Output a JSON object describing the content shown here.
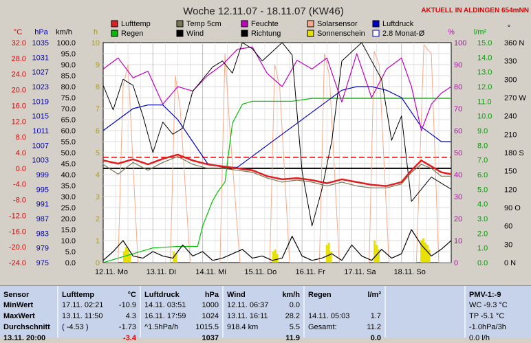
{
  "header": {
    "title": "Woche 12.11.07 - 18.11.07 (KW46)",
    "aktuell": "AKTUELL IN ALDINGEN 654mNN"
  },
  "axis_units": {
    "temp": "°C",
    "hpa": "hPa",
    "kmh": "km/h",
    "h": "h",
    "pct": "%",
    "lm2": "l/m²",
    "deg": "°"
  },
  "axis_ticks": {
    "temp": [
      "32.0",
      "28.0",
      "24.0",
      "20.0",
      "16.0",
      "12.0",
      "8.0",
      "4.0",
      "0.0",
      "-4.0",
      "-8.0",
      "-12.0",
      "-16.0",
      "-20.0",
      "-24.0"
    ],
    "hpa": [
      "1035",
      "1031",
      "1027",
      "1023",
      "1019",
      "1015",
      "1011",
      "1007",
      "1003",
      "999",
      "995",
      "991",
      "987",
      "983",
      "979",
      "975"
    ],
    "kmh": [
      "100.0",
      "95.0",
      "90.0",
      "85.0",
      "80.0",
      "75.0",
      "70.0",
      "65.0",
      "60.0",
      "55.0",
      "50.0",
      "45.0",
      "40.0",
      "35.0",
      "30.0",
      "25.0",
      "20.0",
      "15.0",
      "10.0",
      "5.0",
      "0.0"
    ],
    "h": [
      "10",
      "9",
      "8",
      "7",
      "6",
      "5",
      "4",
      "3",
      "2",
      "1",
      "0"
    ],
    "pct": [
      "100",
      "90",
      "80",
      "70",
      "60",
      "50",
      "40",
      "30",
      "20",
      "10",
      "0"
    ],
    "lm2": [
      "15.0",
      "14.0",
      "13.0",
      "12.0",
      "11.0",
      "10.0",
      "9.0",
      "8.0",
      "7.0",
      "6.0",
      "5.0",
      "4.0",
      "3.0",
      "2.0",
      "1.0",
      "0.0"
    ],
    "deg": [
      "360 N",
      "330",
      "300",
      "270 W",
      "240",
      "210",
      "180 S",
      "150",
      "120",
      "90 O",
      "60",
      "30",
      "0 N"
    ],
    "days": [
      "12.11. Mo",
      "13.11. Di",
      "14.11. Mi",
      "15.11. Do",
      "16.11. Fr",
      "17.11. Sa",
      "18.11. So"
    ]
  },
  "legend": [
    {
      "label": "Lufttemp",
      "color": "#e02020",
      "type": "box"
    },
    {
      "label": "Temp 5cm",
      "color": "#787858",
      "type": "box"
    },
    {
      "label": "Feuchte",
      "color": "#c000c0",
      "type": "box"
    },
    {
      "label": "Solarsensor",
      "color": "#f8a888",
      "type": "box"
    },
    {
      "label": "Luftdruck",
      "color": "#0000c8",
      "type": "box"
    },
    {
      "label": "Regen",
      "color": "#00c000",
      "type": "box"
    },
    {
      "label": "Wind",
      "color": "#000000",
      "type": "box"
    },
    {
      "label": "Richtung",
      "color": "#000000",
      "type": "box"
    },
    {
      "label": "Sonnenschein",
      "color": "#e8e000",
      "type": "box"
    },
    {
      "label": "2.8 Monat-Ø",
      "color": "#0000c8",
      "type": "outline"
    }
  ],
  "chart_data": {
    "type": "line",
    "title": "Woche 12.11.07 - 18.11.07 (KW46)",
    "x_unit": "days since 12.11. 00:00",
    "xlim": [
      0,
      7
    ],
    "ylim_temp": [
      -24,
      32
    ],
    "ylim_pressure": [
      975,
      1035
    ],
    "ylim_wind": [
      0,
      100
    ],
    "ylim_sunshine": [
      0,
      10
    ],
    "ylim_humidity": [
      0,
      100
    ],
    "ylim_rain": [
      0,
      15
    ],
    "ylim_direction": [
      0,
      360
    ],
    "grid": true,
    "reference_lines": [
      {
        "name": "2.8 Monat-Ø",
        "axis": "temp",
        "value": 2.8,
        "style": "dashed",
        "color": "#e00000"
      },
      {
        "name": "0°C",
        "axis": "temp",
        "value": 0,
        "style": "solid",
        "color": "#000000"
      }
    ],
    "series": [
      {
        "name": "Lufttemp",
        "axis": "temp",
        "color": "#e02020",
        "x": [
          0,
          0.3,
          0.6,
          0.9,
          1.2,
          1.5,
          1.8,
          2.1,
          2.4,
          2.7,
          3.0,
          3.3,
          3.6,
          3.9,
          4.2,
          4.5,
          4.8,
          5.1,
          5.4,
          5.7,
          6.0,
          6.2,
          6.4,
          6.6,
          6.8,
          7.0
        ],
        "y": [
          2.0,
          1.2,
          2.3,
          1.0,
          2.4,
          3.5,
          2.0,
          1.0,
          0.5,
          0.0,
          -0.5,
          -2.0,
          -2.8,
          -2.5,
          -3.0,
          -3.8,
          -2.8,
          -3.5,
          -4.2,
          -4.5,
          -3.5,
          -0.5,
          2.0,
          0.5,
          -1.0,
          -1.5
        ]
      },
      {
        "name": "Temp 5cm",
        "axis": "temp",
        "color": "#787858",
        "x": [
          0,
          0.3,
          0.6,
          0.9,
          1.2,
          1.5,
          1.8,
          2.1,
          2.4,
          2.7,
          3.0,
          3.3,
          3.6,
          3.9,
          4.2,
          4.5,
          4.8,
          5.1,
          5.4,
          5.7,
          6.0,
          6.2,
          6.4,
          6.6,
          6.8,
          7.0
        ],
        "y": [
          1.0,
          -1.5,
          1.5,
          -0.5,
          1.5,
          3.0,
          1.0,
          0.0,
          0.0,
          -0.5,
          -1.0,
          -2.5,
          -3.5,
          -3.0,
          -3.5,
          -4.5,
          -3.5,
          -4.5,
          -5.0,
          -5.0,
          -4.0,
          -1.0,
          1.0,
          0.0,
          -2.0,
          -2.0
        ]
      },
      {
        "name": "Feuchte",
        "axis": "humidity",
        "color": "#c000c0",
        "x": [
          0,
          0.3,
          0.6,
          0.9,
          1.2,
          1.5,
          1.8,
          2.1,
          2.4,
          2.7,
          3.0,
          3.3,
          3.6,
          3.9,
          4.2,
          4.5,
          4.8,
          5.1,
          5.4,
          5.7,
          6.0,
          6.2,
          6.4,
          6.6,
          6.8,
          7.0
        ],
        "y": [
          88,
          93,
          84,
          87,
          72,
          80,
          78,
          85,
          90,
          97,
          98,
          86,
          80,
          92,
          88,
          93,
          73,
          95,
          75,
          88,
          93,
          80,
          60,
          72,
          77,
          80
        ]
      },
      {
        "name": "Solarsensor",
        "axis": "humidity",
        "color": "#f8a888",
        "x": [
          0,
          0.3,
          0.4,
          0.5,
          0.7,
          1.0,
          1.35,
          1.45,
          1.55,
          1.75,
          2.0,
          2.35,
          2.45,
          2.55,
          2.75,
          3.0,
          3.35,
          3.45,
          3.55,
          3.75,
          4.0,
          4.35,
          4.45,
          4.55,
          4.75,
          5.0,
          5.35,
          5.45,
          5.55,
          5.75,
          6.0,
          6.3,
          6.45,
          6.6,
          6.75,
          7.0
        ],
        "y": [
          0,
          0,
          80,
          90,
          0,
          0,
          0,
          85,
          70,
          0,
          0,
          0,
          95,
          60,
          0,
          0,
          0,
          90,
          80,
          0,
          0,
          0,
          95,
          85,
          0,
          0,
          0,
          96,
          90,
          0,
          0,
          0,
          99,
          95,
          0,
          0
        ]
      },
      {
        "name": "Luftdruck",
        "axis": "pressure",
        "color": "#0000c8",
        "x": [
          0,
          0.3,
          0.6,
          0.9,
          1.2,
          1.5,
          1.8,
          2.1,
          2.4,
          2.7,
          3.0,
          3.3,
          3.6,
          3.9,
          4.2,
          4.5,
          4.8,
          5.1,
          5.4,
          5.7,
          6.0,
          6.2,
          6.4,
          6.6,
          6.8,
          7.0
        ],
        "y": [
          1011,
          1014,
          1017,
          1018,
          1018,
          1014,
          1008,
          1002,
          1001,
          1001,
          1004,
          1007,
          1010,
          1013,
          1016,
          1019,
          1022,
          1023,
          1023,
          1022,
          1020,
          1016,
          1012,
          1010,
          1008,
          1008
        ]
      },
      {
        "name": "Regen",
        "axis": "rain",
        "color": "#00c000",
        "x": [
          0,
          0.5,
          1.0,
          1.5,
          1.9,
          2.0,
          2.2,
          2.3,
          2.45,
          2.6,
          2.8,
          3.0,
          3.8,
          4.2,
          5.0,
          6.0,
          7.0
        ],
        "y": [
          0,
          0.5,
          1.0,
          1.1,
          1.1,
          2.5,
          4.2,
          4.8,
          5.5,
          9.5,
          10.8,
          11.0,
          11.0,
          11.2,
          11.2,
          11.2,
          11.2
        ]
      },
      {
        "name": "Wind",
        "axis": "wind",
        "color": "#000000",
        "x": [
          0,
          0.2,
          0.4,
          0.6,
          0.8,
          1.0,
          1.2,
          1.4,
          1.6,
          1.8,
          2.0,
          2.2,
          2.4,
          2.6,
          2.8,
          3.0,
          3.2,
          3.4,
          3.6,
          3.8,
          4.0,
          4.2,
          4.4,
          4.6,
          4.8,
          5.0,
          5.2,
          5.4,
          5.6,
          5.8,
          6.0,
          6.2,
          6.4,
          6.6,
          6.8,
          7.0
        ],
        "y": [
          1,
          5,
          10,
          3,
          2,
          5,
          3,
          2,
          8,
          3,
          5,
          1,
          2,
          4,
          6,
          2,
          3,
          1,
          2,
          12,
          3,
          1,
          2,
          4,
          1,
          8,
          3,
          1,
          6,
          2,
          4,
          15,
          8,
          3,
          6,
          10
        ]
      },
      {
        "name": "Richtung",
        "axis": "direction",
        "color": "#000000",
        "x": [
          0,
          0.2,
          0.4,
          0.6,
          0.8,
          1.0,
          1.2,
          1.4,
          1.6,
          1.8,
          2.0,
          2.2,
          2.4,
          2.6,
          2.8,
          3.0,
          3.2,
          3.4,
          3.6,
          3.8,
          4.0,
          4.2,
          4.4,
          4.6,
          4.8,
          5.0,
          5.2,
          5.4,
          5.6,
          5.8,
          6.0,
          6.2,
          6.4,
          6.6,
          6.8,
          7.0
        ],
        "y": [
          290,
          250,
          300,
          290,
          240,
          180,
          230,
          210,
          220,
          280,
          300,
          320,
          330,
          310,
          360,
          350,
          330,
          345,
          360,
          340,
          150,
          60,
          120,
          200,
          330,
          345,
          360,
          330,
          300,
          200,
          240,
          100,
          120,
          140,
          130,
          120
        ]
      },
      {
        "name": "Sonnenschein",
        "axis": "sunshine",
        "color": "#e8e000",
        "type": "bar",
        "x": [
          0.42,
          0.46,
          0.5,
          0.54,
          1.42,
          1.46,
          3.42,
          3.46,
          3.5,
          4.5,
          4.54,
          4.58,
          5.46,
          5.5,
          5.54,
          6.4,
          6.44,
          6.48,
          6.52,
          6.56
        ],
        "y": [
          0.5,
          0.7,
          0.6,
          0.4,
          0.5,
          0.4,
          0.5,
          0.6,
          0.4,
          0.8,
          0.9,
          0.5,
          1.0,
          0.8,
          0.6,
          1.0,
          1.1,
          0.9,
          0.8,
          0.6
        ]
      }
    ]
  },
  "stats": {
    "sensor": {
      "title": "Sensor",
      "rows": [
        "MinWert",
        "MaxWert",
        "Durchschnitt",
        "13.11. 20:00"
      ]
    },
    "luft": {
      "title": "Lufttemp",
      "unit": "°C",
      "rows": [
        {
          "a": "17.11.  02:21",
          "b": "-10.9"
        },
        {
          "a": "13.11.  11:50",
          "b": "4.3"
        },
        {
          "a": "( -4.53 )",
          "b": "-1.73"
        },
        {
          "a": "",
          "b": "-3.4"
        }
      ]
    },
    "druck": {
      "title": "Luftdruck",
      "unit": "hPa",
      "rows": [
        {
          "a": "14.11.  03:51",
          "b": "1000"
        },
        {
          "a": "16.11.  17:59",
          "b": "1024"
        },
        {
          "a": "^1.5hPa/h",
          "b": "1015.5"
        },
        {
          "a": "",
          "b": "1037"
        }
      ]
    },
    "wind": {
      "title": "Wind",
      "unit": "km/h",
      "rows": [
        {
          "a": "12.11.  06:37",
          "b": "0.0"
        },
        {
          "a": "13.11.  16:11",
          "b": "28.2"
        },
        {
          "a": "918.4 km",
          "b": "5.5"
        },
        {
          "a": "",
          "b": "11.9"
        }
      ]
    },
    "regen": {
      "title": "Regen",
      "unit": "l/m²",
      "rows": [
        {
          "a": "",
          "b": ""
        },
        {
          "a": "14.11.  05:03",
          "b": "1.7"
        },
        {
          "a": "Gesamt:",
          "b": "11.2"
        },
        {
          "a": "",
          "b": "0.0"
        }
      ]
    },
    "pmv": {
      "title": "PMV-1:-9",
      "rows": [
        "WC -9.3 °C",
        "TP -5.1 °C",
        "-1.0hPa/3h",
        "0.0 l/h"
      ]
    }
  }
}
